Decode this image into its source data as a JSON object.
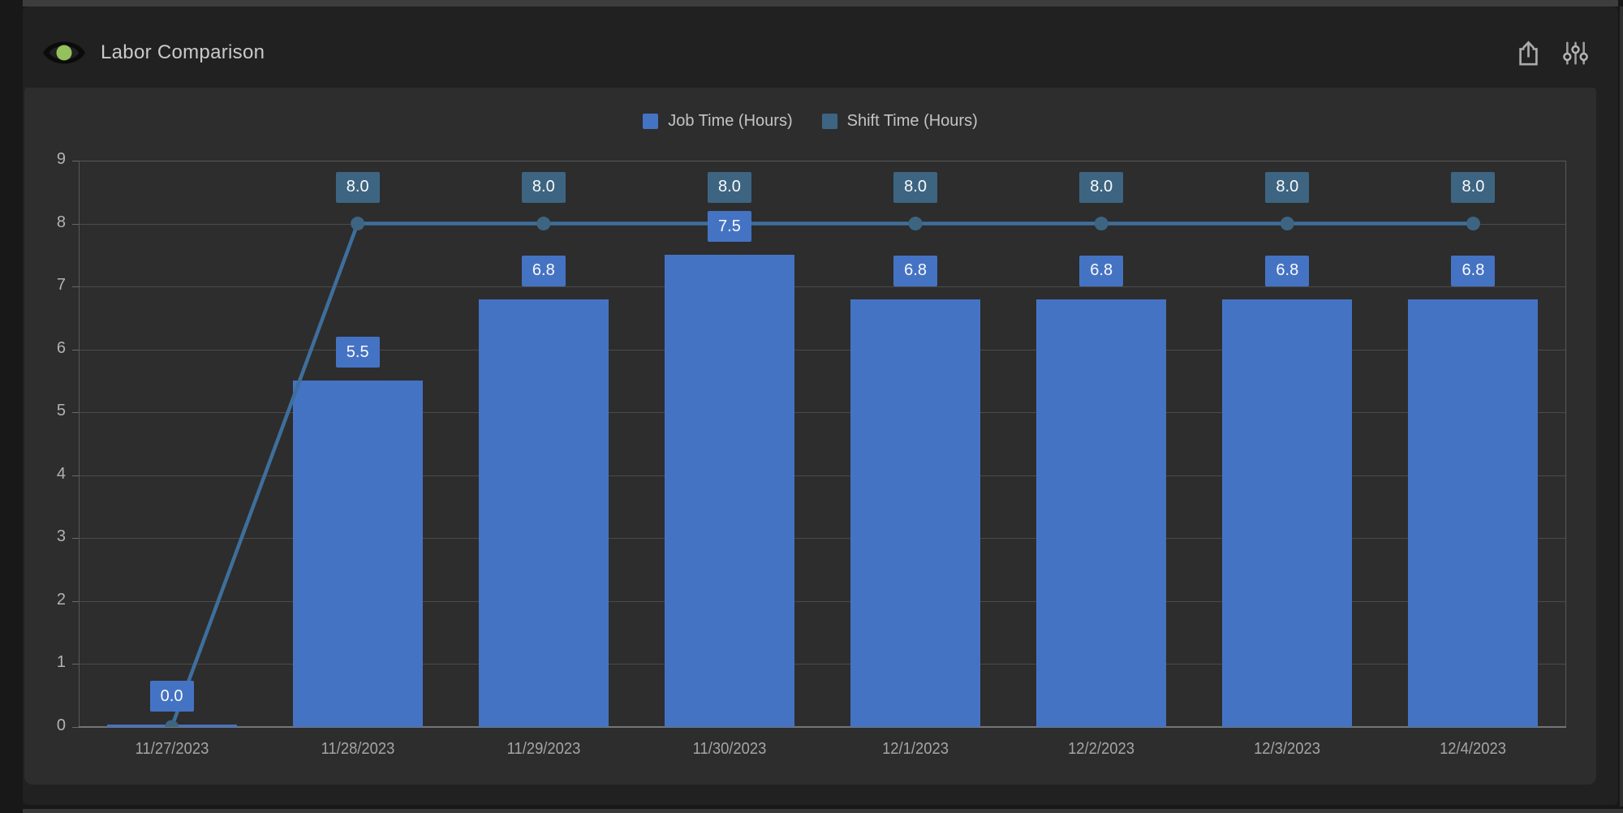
{
  "header": {
    "title": "Labor Comparison",
    "status_color": "#93C15C",
    "icons": {
      "status": "eye-with-green-dot",
      "export": "share-export",
      "settings": "sliders"
    }
  },
  "chart_data": {
    "type": "bar",
    "categories": [
      "11/27/2023",
      "11/28/2023",
      "11/29/2023",
      "11/30/2023",
      "12/1/2023",
      "12/2/2023",
      "12/3/2023",
      "12/4/2023"
    ],
    "series": [
      {
        "name": "Job Time (Hours)",
        "type": "bar",
        "color": "#4573C4",
        "values": [
          0.0,
          5.5,
          6.8,
          7.5,
          6.8,
          6.8,
          6.8,
          6.8
        ],
        "data_labels": [
          "0.0",
          "5.5",
          "6.8",
          "7.5",
          "6.8",
          "6.8",
          "6.8",
          "6.8"
        ]
      },
      {
        "name": "Shift Time (Hours)",
        "type": "line",
        "color": "#3D6582",
        "line_color": "#3E6F9C",
        "values": [
          0.0,
          8.0,
          8.0,
          8.0,
          8.0,
          8.0,
          8.0,
          8.0
        ],
        "data_labels": [
          "",
          "8.0",
          "8.0",
          "8.0",
          "8.0",
          "8.0",
          "8.0",
          "8.0"
        ]
      }
    ],
    "title": "",
    "xlabel": "",
    "ylabel": "",
    "ylim": [
      0,
      9
    ],
    "ytick_interval": 1,
    "grid": true,
    "legend_position": "top-center"
  }
}
